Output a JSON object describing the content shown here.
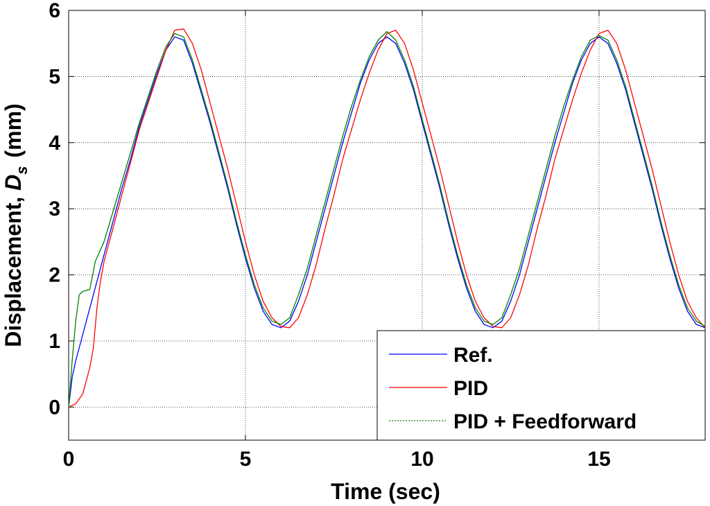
{
  "chart_data": {
    "type": "line",
    "xlabel": "Time (sec)",
    "ylabel": {
      "main": "Displacement, ",
      "var": "D",
      "sub": "s",
      "unit": "(mm)"
    },
    "xlim": [
      0,
      18
    ],
    "ylim": [
      -0.5,
      6
    ],
    "xticks": [
      0,
      5,
      10,
      15
    ],
    "xtick_labels": [
      "0",
      "5",
      "10",
      "15"
    ],
    "yticks": [
      0,
      1,
      2,
      3,
      4,
      5,
      6
    ],
    "ytick_labels": [
      "0",
      "1",
      "2",
      "3",
      "4",
      "5",
      "6"
    ],
    "grid": true,
    "legend_position": "bottom-right",
    "series": [
      {
        "name": "Ref.",
        "color": "#0000ff",
        "points": [
          [
            0,
            0
          ],
          [
            0.1,
            0.45
          ],
          [
            0.2,
            0.7
          ],
          [
            0.3,
            0.9
          ],
          [
            0.4,
            1.1
          ],
          [
            0.5,
            1.3
          ],
          [
            0.6,
            1.5
          ],
          [
            0.7,
            1.7
          ],
          [
            0.8,
            1.9
          ],
          [
            1.0,
            2.3
          ],
          [
            1.25,
            2.8
          ],
          [
            1.5,
            3.3
          ],
          [
            1.75,
            3.75
          ],
          [
            2.0,
            4.25
          ],
          [
            2.25,
            4.65
          ],
          [
            2.5,
            5.05
          ],
          [
            2.75,
            5.4
          ],
          [
            3.0,
            5.6
          ],
          [
            3.25,
            5.55
          ],
          [
            3.5,
            5.2
          ],
          [
            3.75,
            4.75
          ],
          [
            4.0,
            4.3
          ],
          [
            4.25,
            3.8
          ],
          [
            4.5,
            3.3
          ],
          [
            4.75,
            2.75
          ],
          [
            5.0,
            2.25
          ],
          [
            5.25,
            1.8
          ],
          [
            5.5,
            1.45
          ],
          [
            5.75,
            1.25
          ],
          [
            6.0,
            1.2
          ],
          [
            6.25,
            1.3
          ],
          [
            6.5,
            1.6
          ],
          [
            6.75,
            2.0
          ],
          [
            7.0,
            2.5
          ],
          [
            7.25,
            3.0
          ],
          [
            7.5,
            3.5
          ],
          [
            7.75,
            4.0
          ],
          [
            8.0,
            4.45
          ],
          [
            8.25,
            4.9
          ],
          [
            8.5,
            5.25
          ],
          [
            8.75,
            5.5
          ],
          [
            9.0,
            5.6
          ],
          [
            9.25,
            5.5
          ],
          [
            9.5,
            5.2
          ],
          [
            9.75,
            4.8
          ],
          [
            10.0,
            4.3
          ],
          [
            10.25,
            3.8
          ],
          [
            10.5,
            3.3
          ],
          [
            10.75,
            2.75
          ],
          [
            11.0,
            2.25
          ],
          [
            11.25,
            1.8
          ],
          [
            11.5,
            1.45
          ],
          [
            11.75,
            1.25
          ],
          [
            12.0,
            1.2
          ],
          [
            12.25,
            1.3
          ],
          [
            12.5,
            1.6
          ],
          [
            12.75,
            2.0
          ],
          [
            13.0,
            2.5
          ],
          [
            13.25,
            3.0
          ],
          [
            13.5,
            3.5
          ],
          [
            13.75,
            4.0
          ],
          [
            14.0,
            4.45
          ],
          [
            14.25,
            4.9
          ],
          [
            14.5,
            5.25
          ],
          [
            14.75,
            5.5
          ],
          [
            15.0,
            5.6
          ],
          [
            15.25,
            5.5
          ],
          [
            15.5,
            5.2
          ],
          [
            15.75,
            4.8
          ],
          [
            16.0,
            4.3
          ],
          [
            16.25,
            3.8
          ],
          [
            16.5,
            3.3
          ],
          [
            16.75,
            2.75
          ],
          [
            17.0,
            2.25
          ],
          [
            17.25,
            1.8
          ],
          [
            17.5,
            1.45
          ],
          [
            17.75,
            1.25
          ],
          [
            18.0,
            1.2
          ]
        ]
      },
      {
        "name": "PID",
        "color": "#ff0000",
        "points": [
          [
            0,
            0
          ],
          [
            0.2,
            0.05
          ],
          [
            0.4,
            0.2
          ],
          [
            0.5,
            0.4
          ],
          [
            0.6,
            0.6
          ],
          [
            0.7,
            0.9
          ],
          [
            0.8,
            1.5
          ],
          [
            0.9,
            1.9
          ],
          [
            1.0,
            2.2
          ],
          [
            1.25,
            2.7
          ],
          [
            1.5,
            3.2
          ],
          [
            1.75,
            3.7
          ],
          [
            2.0,
            4.2
          ],
          [
            2.25,
            4.6
          ],
          [
            2.5,
            5.0
          ],
          [
            2.75,
            5.4
          ],
          [
            3.0,
            5.7
          ],
          [
            3.25,
            5.72
          ],
          [
            3.5,
            5.5
          ],
          [
            3.75,
            5.1
          ],
          [
            4.0,
            4.6
          ],
          [
            4.25,
            4.1
          ],
          [
            4.5,
            3.6
          ],
          [
            4.75,
            3.05
          ],
          [
            5.0,
            2.5
          ],
          [
            5.25,
            2.0
          ],
          [
            5.5,
            1.6
          ],
          [
            5.75,
            1.35
          ],
          [
            6.0,
            1.22
          ],
          [
            6.25,
            1.2
          ],
          [
            6.5,
            1.35
          ],
          [
            6.75,
            1.7
          ],
          [
            7.0,
            2.15
          ],
          [
            7.25,
            2.7
          ],
          [
            7.5,
            3.2
          ],
          [
            7.75,
            3.75
          ],
          [
            8.0,
            4.2
          ],
          [
            8.25,
            4.65
          ],
          [
            8.5,
            5.05
          ],
          [
            8.75,
            5.4
          ],
          [
            9.0,
            5.65
          ],
          [
            9.25,
            5.7
          ],
          [
            9.5,
            5.5
          ],
          [
            9.75,
            5.1
          ],
          [
            10.0,
            4.6
          ],
          [
            10.25,
            4.1
          ],
          [
            10.5,
            3.6
          ],
          [
            10.75,
            3.05
          ],
          [
            11.0,
            2.5
          ],
          [
            11.25,
            2.0
          ],
          [
            11.5,
            1.6
          ],
          [
            11.75,
            1.35
          ],
          [
            12.0,
            1.22
          ],
          [
            12.25,
            1.2
          ],
          [
            12.5,
            1.35
          ],
          [
            12.75,
            1.7
          ],
          [
            13.0,
            2.15
          ],
          [
            13.25,
            2.7
          ],
          [
            13.5,
            3.2
          ],
          [
            13.75,
            3.75
          ],
          [
            14.0,
            4.2
          ],
          [
            14.25,
            4.65
          ],
          [
            14.5,
            5.05
          ],
          [
            14.75,
            5.4
          ],
          [
            15.0,
            5.65
          ],
          [
            15.25,
            5.7
          ],
          [
            15.5,
            5.5
          ],
          [
            15.75,
            5.1
          ],
          [
            16.0,
            4.6
          ],
          [
            16.25,
            4.1
          ],
          [
            16.5,
            3.6
          ],
          [
            16.75,
            3.05
          ],
          [
            17.0,
            2.5
          ],
          [
            17.25,
            2.0
          ],
          [
            17.5,
            1.6
          ],
          [
            17.75,
            1.35
          ],
          [
            18.0,
            1.2
          ]
        ]
      },
      {
        "name": "PID + Feedforward",
        "color": "#008000",
        "points": [
          [
            0,
            0
          ],
          [
            0.1,
            0.7
          ],
          [
            0.2,
            1.3
          ],
          [
            0.3,
            1.7
          ],
          [
            0.4,
            1.75
          ],
          [
            0.6,
            1.78
          ],
          [
            0.75,
            2.2
          ],
          [
            1.0,
            2.5
          ],
          [
            1.25,
            2.95
          ],
          [
            1.5,
            3.4
          ],
          [
            1.75,
            3.85
          ],
          [
            2.0,
            4.3
          ],
          [
            2.25,
            4.7
          ],
          [
            2.5,
            5.1
          ],
          [
            2.75,
            5.45
          ],
          [
            3.0,
            5.65
          ],
          [
            3.25,
            5.6
          ],
          [
            3.5,
            5.25
          ],
          [
            3.75,
            4.8
          ],
          [
            4.0,
            4.35
          ],
          [
            4.25,
            3.85
          ],
          [
            4.5,
            3.35
          ],
          [
            4.75,
            2.8
          ],
          [
            5.0,
            2.3
          ],
          [
            5.25,
            1.85
          ],
          [
            5.5,
            1.5
          ],
          [
            5.75,
            1.3
          ],
          [
            6.0,
            1.25
          ],
          [
            6.25,
            1.35
          ],
          [
            6.5,
            1.7
          ],
          [
            6.75,
            2.1
          ],
          [
            7.0,
            2.6
          ],
          [
            7.25,
            3.1
          ],
          [
            7.5,
            3.6
          ],
          [
            7.75,
            4.1
          ],
          [
            8.0,
            4.55
          ],
          [
            8.25,
            4.95
          ],
          [
            8.5,
            5.3
          ],
          [
            8.75,
            5.55
          ],
          [
            9.0,
            5.68
          ],
          [
            9.25,
            5.55
          ],
          [
            9.5,
            5.25
          ],
          [
            9.75,
            4.85
          ],
          [
            10.0,
            4.35
          ],
          [
            10.25,
            3.85
          ],
          [
            10.5,
            3.35
          ],
          [
            10.75,
            2.8
          ],
          [
            11.0,
            2.3
          ],
          [
            11.25,
            1.85
          ],
          [
            11.5,
            1.5
          ],
          [
            11.75,
            1.3
          ],
          [
            12.0,
            1.25
          ],
          [
            12.25,
            1.35
          ],
          [
            12.5,
            1.7
          ],
          [
            12.75,
            2.1
          ],
          [
            13.0,
            2.6
          ],
          [
            13.25,
            3.1
          ],
          [
            13.5,
            3.6
          ],
          [
            13.75,
            4.1
          ],
          [
            14.0,
            4.55
          ],
          [
            14.25,
            4.95
          ],
          [
            14.5,
            5.3
          ],
          [
            14.75,
            5.55
          ],
          [
            15.0,
            5.62
          ],
          [
            15.25,
            5.55
          ],
          [
            15.5,
            5.25
          ],
          [
            15.75,
            4.85
          ],
          [
            16.0,
            4.35
          ],
          [
            16.25,
            3.85
          ],
          [
            16.5,
            3.35
          ],
          [
            16.75,
            2.8
          ],
          [
            17.0,
            2.3
          ],
          [
            17.25,
            1.85
          ],
          [
            17.5,
            1.5
          ],
          [
            17.75,
            1.3
          ],
          [
            18.0,
            1.22
          ]
        ]
      }
    ]
  }
}
